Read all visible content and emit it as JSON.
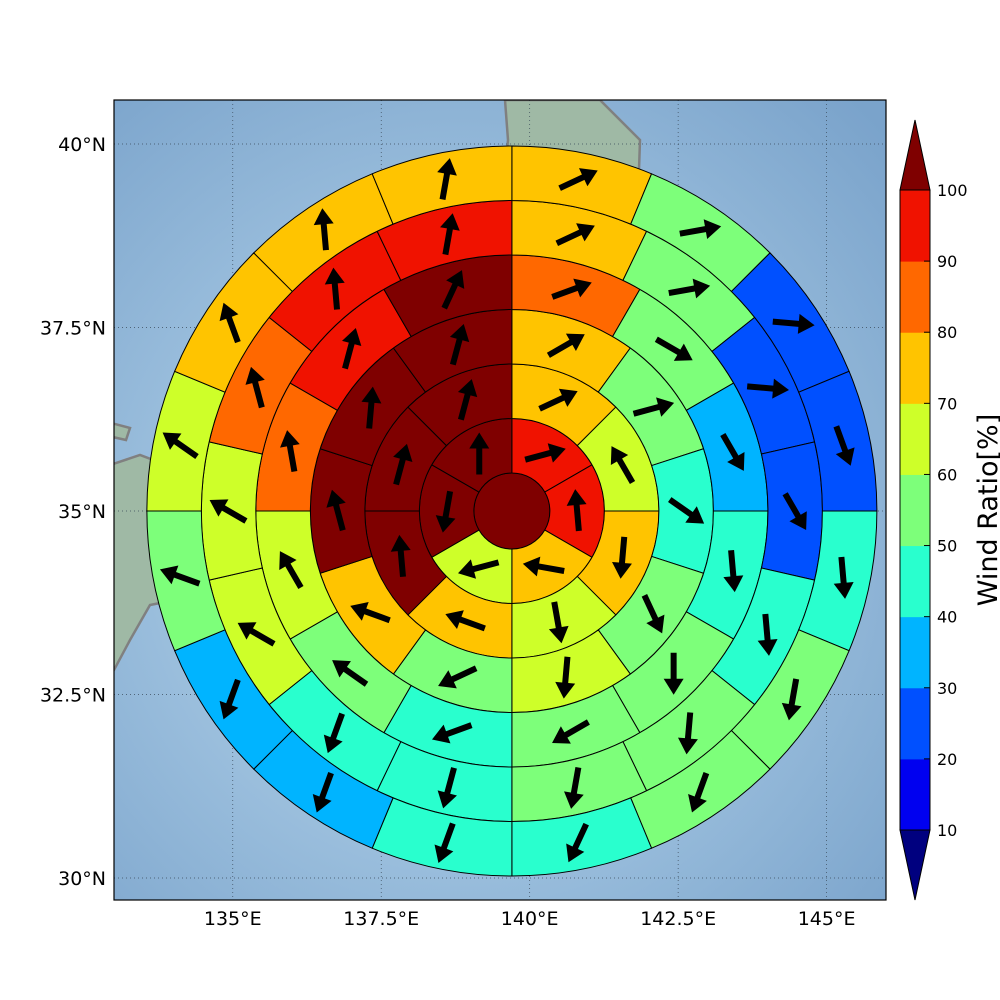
{
  "map": {
    "lon_range": [
      133.0,
      146.0
    ],
    "lat_range": [
      29.7,
      40.6
    ],
    "lon_ticks": [
      {
        "value": 135.0,
        "label": "135°E"
      },
      {
        "value": 137.5,
        "label": "137.5°E"
      },
      {
        "value": 140.0,
        "label": "140°E"
      },
      {
        "value": 142.5,
        "label": "142.5°E"
      },
      {
        "value": 145.0,
        "label": "145°E"
      }
    ],
    "lat_ticks": [
      {
        "value": 30.0,
        "label": "30°N"
      },
      {
        "value": 32.5,
        "label": "32.5°N"
      },
      {
        "value": 35.0,
        "label": "35°N"
      },
      {
        "value": 37.5,
        "label": "37.5°N"
      },
      {
        "value": 40.0,
        "label": "40°N"
      }
    ],
    "grid": true,
    "center": {
      "lon": 139.7,
      "lat": 35.0
    },
    "sea_color": "#86acd0",
    "land_color": "#9fb9a5",
    "coastline_color": "#808080"
  },
  "colorbar": {
    "label": "Wind Ratio[%]",
    "ticks": [
      "10",
      "20",
      "30",
      "40",
      "50",
      "60",
      "70",
      "80",
      "90",
      "100"
    ],
    "levels": [
      0,
      10,
      20,
      30,
      40,
      50,
      60,
      70,
      80,
      90,
      100
    ],
    "colors": [
      "#00007f",
      "#0000f0",
      "#0050ff",
      "#00b4ff",
      "#29ffce",
      "#7dff7a",
      "#ceff29",
      "#ffc400",
      "#ff6800",
      "#f01200",
      "#7f0000"
    ],
    "extend": "both"
  },
  "chart_data": {
    "type": "polar-grid-map",
    "variable": "Wind Ratio[%]",
    "rings": [
      {
        "sectors": 1,
        "ratios": [
          100
        ],
        "arrow_directions_deg": []
      },
      {
        "sectors": 6,
        "ratios": [
          95,
          95,
          75,
          65,
          100,
          100
        ],
        "arrow_directions_deg": [
          75,
          355,
          280,
          255,
          190,
          0
        ]
      },
      {
        "sectors": 8,
        "ratios": [
          75,
          65,
          75,
          65,
          75,
          100,
          100,
          100
        ],
        "arrow_directions_deg": [
          65,
          330,
          185,
          170,
          290,
          355,
          15,
          15
        ]
      },
      {
        "sectors": 10,
        "ratios": [
          75,
          55,
          45,
          55,
          65,
          55,
          75,
          100,
          100,
          100
        ],
        "arrow_directions_deg": [
          60,
          75,
          125,
          155,
          185,
          245,
          290,
          345,
          5,
          15
        ]
      },
      {
        "sectors": 12,
        "ratios": [
          85,
          55,
          35,
          45,
          55,
          55,
          45,
          55,
          65,
          85,
          95,
          100
        ],
        "arrow_directions_deg": [
          70,
          120,
          150,
          175,
          180,
          240,
          250,
          305,
          330,
          350,
          15,
          25
        ]
      },
      {
        "sectors": 14,
        "ratios": [
          75,
          55,
          25,
          25,
          45,
          55,
          55,
          45,
          45,
          65,
          65,
          85,
          95,
          95
        ],
        "arrow_directions_deg": [
          65,
          80,
          95,
          150,
          175,
          185,
          190,
          195,
          200,
          300,
          300,
          345,
          355,
          10
        ]
      },
      {
        "sectors": 16,
        "ratios": [
          75,
          55,
          25,
          25,
          45,
          55,
          55,
          45,
          45,
          35,
          35,
          55,
          65,
          75,
          75,
          75
        ],
        "arrow_directions_deg": [
          65,
          80,
          95,
          160,
          175,
          190,
          200,
          205,
          200,
          200,
          200,
          290,
          305,
          340,
          355,
          10
        ]
      }
    ]
  }
}
